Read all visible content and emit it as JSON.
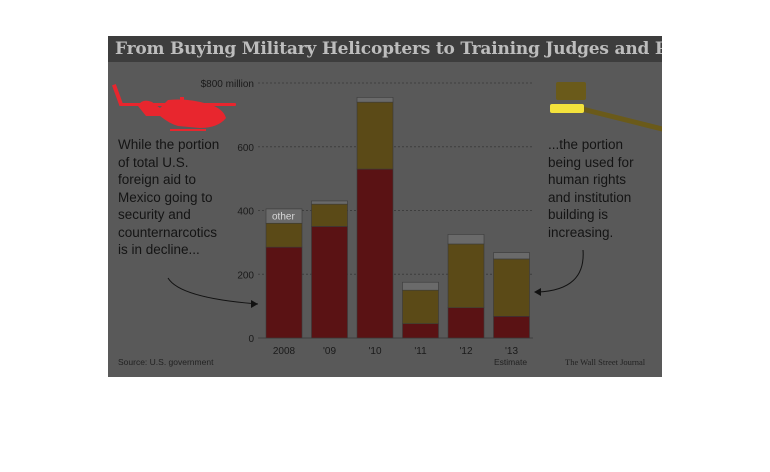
{
  "title": "From Buying Military Helicopters to Training Judges and Prosecutors",
  "left_note": "While the portion of total U.S. foreign aid to Mexico going to security and counternarcotics is in decline...",
  "right_note": "...the portion being used for human rights and institution building is increasing.",
  "source": "Source: U.S. government",
  "credit": "The Wall Street Journal",
  "estimate_label": "Estimate",
  "colors": {
    "security": "#5a1214",
    "institution": "#5b4a17",
    "other": "#6a6a6a",
    "helicopter": "#e8262e",
    "gavel": "#6a5a1a",
    "gavel_highlight": "#f3e23c"
  },
  "icons": [
    "helicopter-icon",
    "gavel-icon"
  ],
  "chart_data": {
    "type": "bar",
    "stacked": true,
    "categories": [
      "2008",
      "'09",
      "'10",
      "'11",
      "'12",
      "'13"
    ],
    "series": [
      {
        "name": "",
        "values": [
          285,
          350,
          530,
          45,
          95,
          68
        ]
      },
      {
        "name": "",
        "values": [
          75,
          70,
          210,
          105,
          200,
          180
        ]
      },
      {
        "name": "other",
        "values": [
          45,
          10,
          15,
          25,
          30,
          20
        ]
      }
    ],
    "ylim": [
      0,
      800
    ],
    "y_ticks": [
      {
        "value": 0,
        "label": "0"
      },
      {
        "value": 200,
        "label": "200"
      },
      {
        "value": 400,
        "label": "400"
      },
      {
        "value": 600,
        "label": "600"
      },
      {
        "value": 800,
        "label": "$800 million"
      }
    ],
    "grid": true,
    "xlabel": "",
    "ylabel": ""
  }
}
